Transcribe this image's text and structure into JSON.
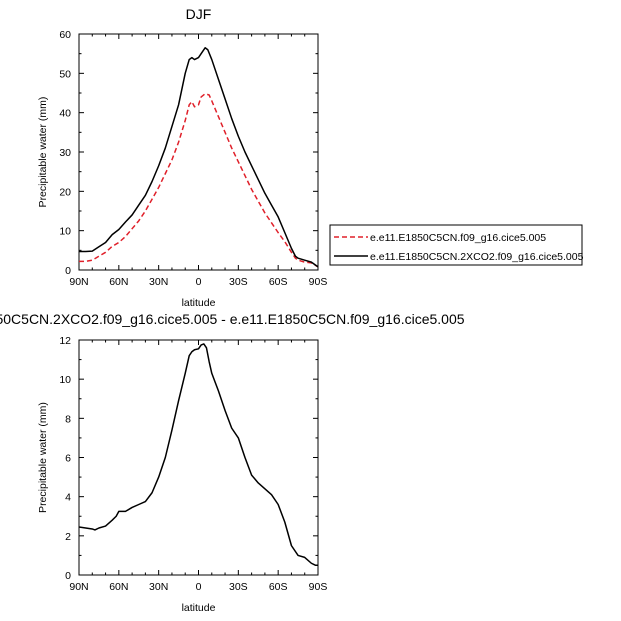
{
  "chart_data": [
    {
      "type": "line",
      "title": "DJF",
      "xlabel": "latitude",
      "ylabel": "Precipitable water (mm)",
      "xlim": [
        90,
        -90
      ],
      "ylim": [
        0,
        60
      ],
      "xticks": [
        90,
        60,
        30,
        0,
        -30,
        -60,
        -90
      ],
      "xtick_labels": [
        "90N",
        "60N",
        "30N",
        "0",
        "30S",
        "60S",
        "90S"
      ],
      "yticks": [
        0,
        10,
        20,
        30,
        40,
        50,
        60
      ],
      "ytick_labels": [
        "0",
        "10",
        "20",
        "30",
        "40",
        "50",
        "60"
      ],
      "legend_position": "right",
      "series": [
        {
          "name": "e.e11.E1850C5CN.f09_g16.cice5.005",
          "color": "#e0202a",
          "style": "dashed",
          "x": [
            90,
            85,
            80,
            75,
            70,
            65,
            60,
            55,
            50,
            45,
            40,
            35,
            30,
            25,
            20,
            15,
            10,
            7,
            5,
            3,
            0,
            -2,
            -5,
            -8,
            -10,
            -15,
            -20,
            -25,
            -30,
            -35,
            -40,
            -45,
            -50,
            -55,
            -60,
            -65,
            -70,
            -73,
            -75,
            -80,
            -85,
            -90
          ],
          "y": [
            2.2,
            2.2,
            2.5,
            3.5,
            4.5,
            6.0,
            7.0,
            8.5,
            10.5,
            12.5,
            15.0,
            18.0,
            21.0,
            24.5,
            28.0,
            32.5,
            38.0,
            42.0,
            42.8,
            41.5,
            42.0,
            44.0,
            44.8,
            44.5,
            43.0,
            39.0,
            35.0,
            31.0,
            27.5,
            24.0,
            20.5,
            17.5,
            14.5,
            12.0,
            9.5,
            7.2,
            4.5,
            3.0,
            2.5,
            2.0,
            1.8,
            0.8
          ]
        },
        {
          "name": "e.e11.E1850C5CN.2XCO2.f09_g16.cice5.005",
          "color": "#000000",
          "style": "solid",
          "x": [
            90,
            85,
            80,
            75,
            70,
            65,
            60,
            55,
            50,
            45,
            40,
            35,
            30,
            25,
            20,
            15,
            10,
            7,
            5,
            3,
            0,
            -3,
            -5,
            -7,
            -10,
            -15,
            -20,
            -25,
            -30,
            -35,
            -40,
            -45,
            -50,
            -55,
            -60,
            -65,
            -70,
            -73,
            -75,
            -80,
            -85,
            -90
          ],
          "y": [
            4.7,
            4.7,
            4.8,
            5.9,
            7.0,
            9.0,
            10.3,
            12.2,
            14.0,
            16.5,
            19.0,
            22.5,
            26.5,
            31.0,
            36.5,
            42.0,
            50.0,
            53.5,
            54.0,
            53.5,
            54.0,
            55.5,
            56.5,
            56.0,
            53.5,
            48.5,
            43.5,
            38.5,
            34.0,
            30.0,
            26.5,
            23.0,
            19.5,
            16.5,
            13.5,
            9.5,
            5.5,
            3.5,
            3.0,
            2.5,
            2.0,
            0.8
          ]
        }
      ]
    },
    {
      "type": "line",
      "title": "50C5CN.2XCO2.f09_g16.cice5.005 - e.e11.E1850C5CN.f09_g16.cice5.005",
      "xlabel": "latitude",
      "ylabel": "Precipitable water (mm)",
      "xlim": [
        90,
        -90
      ],
      "ylim": [
        0,
        12
      ],
      "xticks": [
        90,
        60,
        30,
        0,
        -30,
        -60,
        -90
      ],
      "xtick_labels": [
        "90N",
        "60N",
        "30N",
        "0",
        "30S",
        "60S",
        "90S"
      ],
      "yticks": [
        0,
        2,
        4,
        6,
        8,
        10,
        12
      ],
      "ytick_labels": [
        "0",
        "2",
        "4",
        "6",
        "8",
        "10",
        "12"
      ],
      "series": [
        {
          "color": "#000000",
          "style": "solid",
          "x": [
            90,
            85,
            80,
            78,
            75,
            70,
            65,
            62,
            60,
            55,
            50,
            45,
            40,
            35,
            30,
            25,
            20,
            15,
            10,
            7,
            5,
            3,
            0,
            -2,
            -4,
            -6,
            -8,
            -10,
            -15,
            -20,
            -25,
            -30,
            -35,
            -40,
            -45,
            -50,
            -55,
            -60,
            -65,
            -70,
            -75,
            -80,
            -85,
            -88,
            -90
          ],
          "y": [
            2.45,
            2.4,
            2.35,
            2.3,
            2.4,
            2.5,
            2.8,
            3.0,
            3.25,
            3.25,
            3.45,
            3.6,
            3.75,
            4.2,
            5.0,
            6.0,
            7.4,
            8.9,
            10.3,
            11.2,
            11.4,
            11.5,
            11.55,
            11.75,
            11.8,
            11.6,
            10.9,
            10.3,
            9.4,
            8.4,
            7.5,
            7.0,
            6.0,
            5.1,
            4.7,
            4.4,
            4.1,
            3.6,
            2.7,
            1.5,
            1.0,
            0.9,
            0.6,
            0.5,
            0.5
          ]
        }
      ]
    }
  ]
}
